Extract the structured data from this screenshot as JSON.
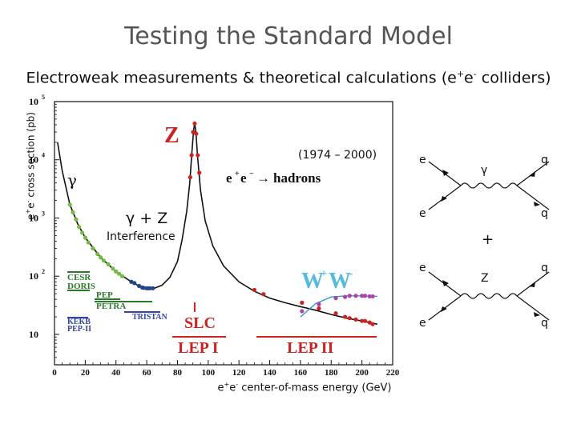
{
  "slide": {
    "title": "Testing the Standard Model",
    "subtitle_main": "Electroweak measurements & theoretical calculations (e",
    "subtitle_sup1": "+",
    "subtitle_mid": "e",
    "subtitle_sup2": "-",
    "subtitle_end": " colliders)"
  },
  "chart_data": {
    "type": "scatter",
    "title": "",
    "y_axis": {
      "label_parts": [
        "e",
        "+",
        "e",
        "-",
        " cross section (pb)"
      ],
      "scale": "log",
      "ylim": [
        3,
        100000
      ],
      "ticks": [
        10,
        100,
        1000,
        10000,
        100000
      ],
      "tick_labels": [
        "10",
        "10",
        "10",
        "10",
        "10"
      ],
      "tick_exponents": [
        "",
        "2",
        "3",
        "4",
        "5"
      ]
    },
    "x_axis": {
      "label_parts": [
        "e",
        "+",
        "e",
        "-",
        " center-of-mass energy (GeV)"
      ],
      "xlim": [
        0,
        220
      ],
      "ticks": [
        0,
        20,
        40,
        60,
        80,
        100,
        120,
        140,
        160,
        180,
        200,
        220
      ]
    },
    "grid": false,
    "annotations": {
      "Z_peak": "Z",
      "process_prefix": "e",
      "process_suffix": "hadrons",
      "gamma": "γ",
      "gamma_Z": "γ + Z",
      "interference": "Interference",
      "years": "(1974 – 2000)",
      "WW_base": "W",
      "WW_sup1": "+",
      "WW_sup2": "-"
    },
    "experiments": [
      {
        "name": "CESR",
        "color": "#2a7a2a"
      },
      {
        "name": "DORIS",
        "color": "#2a7a2a"
      },
      {
        "name": "PEP",
        "color": "#2a7a2a"
      },
      {
        "name": "PETRA",
        "color": "#2a7a2a"
      },
      {
        "name": "KEKB",
        "color": "#3344aa"
      },
      {
        "name": "PEP-II",
        "color": "#3344aa"
      },
      {
        "name": "TRISTAN",
        "color": "#3344aa"
      },
      {
        "name": "SLC",
        "color": "#cc2222"
      },
      {
        "name": "LEP I",
        "color": "#cc2222"
      },
      {
        "name": "LEP II",
        "color": "#cc2222"
      }
    ],
    "series": [
      {
        "name": "",
        "kind": "theory-curve",
        "color": "#111111",
        "x": [
          2,
          5,
          10,
          15,
          20,
          30,
          40,
          50,
          55,
          60,
          65,
          70,
          75,
          80,
          83,
          86,
          88,
          89.5,
          90.5,
          91.2,
          92,
          93,
          95,
          98,
          103,
          110,
          120,
          130,
          140,
          150,
          160,
          170,
          180,
          190,
          200,
          210
        ],
        "y": [
          20000,
          6500,
          1700,
          800,
          460,
          210,
          120,
          80,
          68,
          62,
          62,
          70,
          95,
          180,
          420,
          1300,
          4000,
          15000,
          32000,
          42000,
          30000,
          12000,
          3000,
          900,
          330,
          150,
          80,
          55,
          42,
          35,
          30,
          26,
          22,
          19,
          17,
          15
        ]
      },
      {
        "name": "",
        "kind": "theory-curve",
        "color": "#3399cc",
        "x": [
          160,
          165,
          170,
          180,
          190,
          200,
          210
        ],
        "y": [
          20,
          26,
          34,
          44,
          46,
          46,
          45
        ]
      },
      {
        "name": "",
        "kind": "data",
        "color": "#77bb44",
        "x": [
          10,
          12,
          14,
          16,
          18,
          20,
          22,
          25,
          28,
          30,
          32,
          35,
          38,
          40,
          42,
          44
        ],
        "y": [
          1700,
          1250,
          950,
          700,
          560,
          460,
          380,
          300,
          240,
          210,
          185,
          160,
          135,
          120,
          110,
          100
        ]
      },
      {
        "name": "",
        "kind": "data",
        "color": "#224488",
        "x": [
          50,
          52,
          55,
          57,
          58,
          60,
          61,
          62,
          64
        ],
        "y": [
          80,
          76,
          68,
          64,
          63,
          62,
          62,
          62,
          62
        ]
      },
      {
        "name": "",
        "kind": "data",
        "color": "#cc2222",
        "x": [
          88.3,
          89.2,
          90.2,
          91.2,
          92.2,
          93.2,
          94.2,
          130,
          136,
          161,
          172,
          183,
          189,
          192,
          196,
          200,
          202,
          205,
          207
        ],
        "y": [
          5000,
          12000,
          30000,
          42000,
          28000,
          12000,
          6000,
          58,
          49,
          35,
          28,
          23,
          20,
          19,
          18,
          17,
          17,
          16,
          15
        ]
      },
      {
        "name": "",
        "kind": "data",
        "color": "#aa44aa",
        "x": [
          161,
          172,
          183,
          189,
          192,
          196,
          200,
          202,
          205,
          207
        ],
        "y": [
          25,
          33,
          42,
          44,
          46,
          46,
          46,
          46,
          45,
          45
        ]
      }
    ]
  },
  "feynman": {
    "plus": "+",
    "diagram1": {
      "e_top": "e",
      "e_bottom": "e",
      "boson": "γ",
      "q_top": "q",
      "q_bottom": "q"
    },
    "diagram2": {
      "e_top": "e",
      "e_bottom": "e",
      "boson": "Z",
      "q_top": "q",
      "q_bottom": "q"
    }
  },
  "colors": {
    "title": "#555555",
    "curve": "#111111",
    "red": "#cc2222",
    "ww": "#3399cc",
    "green": "#77bb44",
    "blue": "#224488"
  }
}
